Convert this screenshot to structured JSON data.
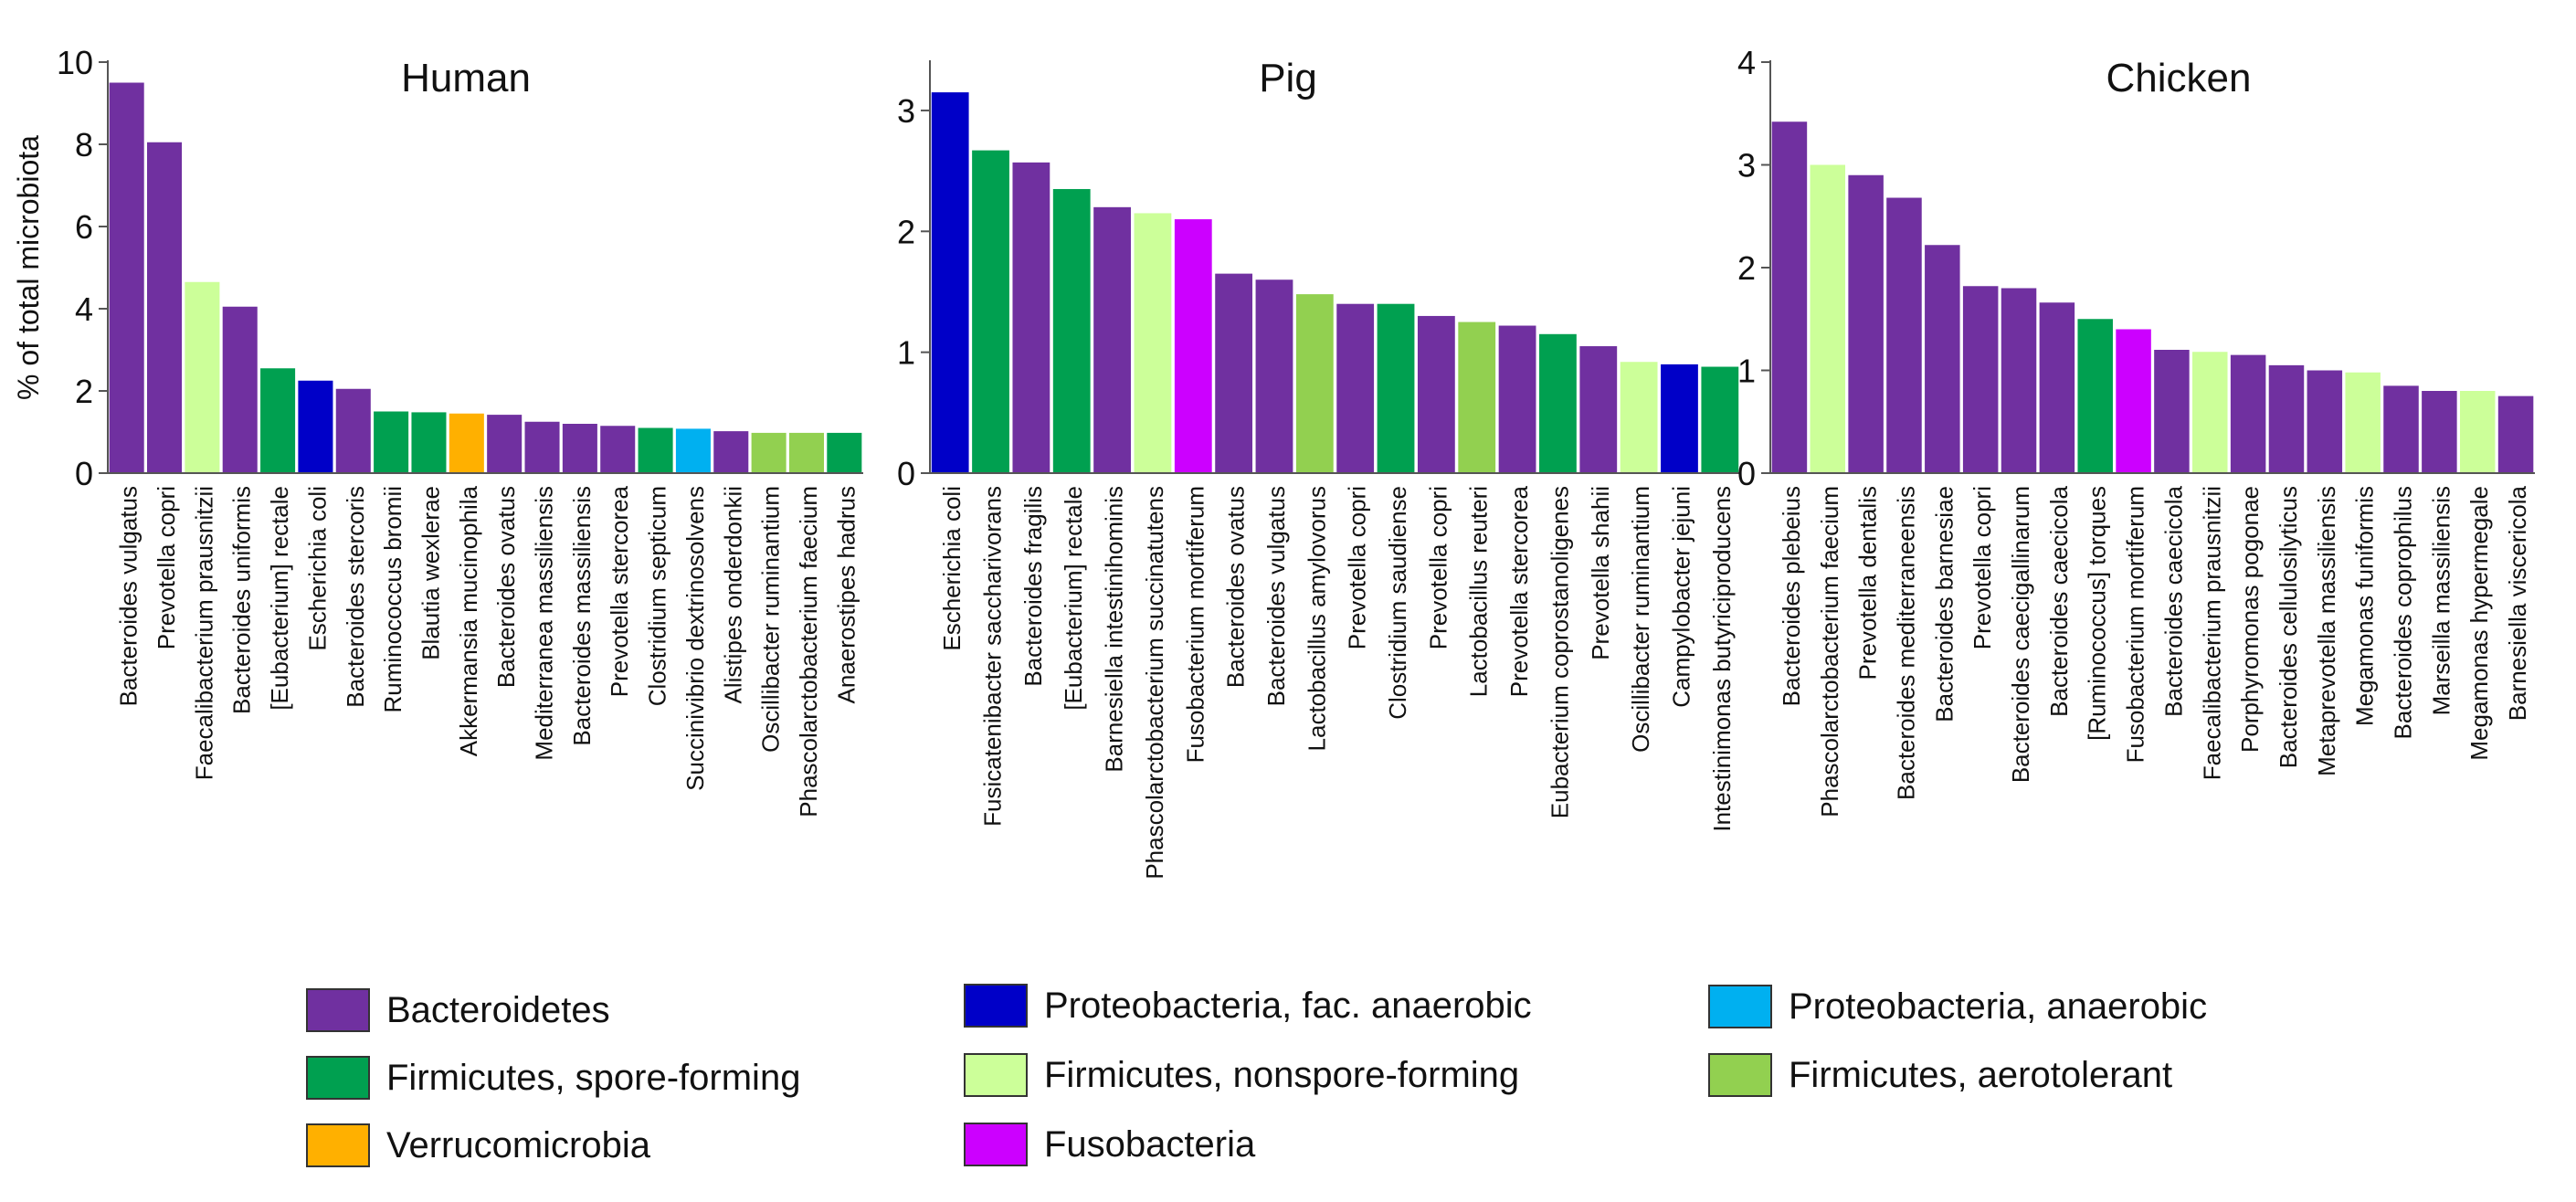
{
  "colors": {
    "bacteroidetes": "#7030a0",
    "firmicutes_spore": "#00a050",
    "verrucomicrobia": "#ffb000",
    "proteobacteria_fac": "#0000c8",
    "firmicutes_nonspore": "#ccff99",
    "fusobacteria": "#cc00ff",
    "proteobacteria_anaerobic": "#00b0f0",
    "firmicutes_aerotolerant": "#92d050"
  },
  "chart_data": [
    {
      "type": "bar",
      "title": "Human",
      "ylabel": "% of total microbiota",
      "xlabel": "",
      "ylim": [
        0,
        10
      ],
      "yticks": [
        "0",
        "2",
        "4",
        "6",
        "8",
        "10"
      ],
      "yticks_values": [
        0,
        2,
        4,
        6,
        8,
        10
      ],
      "categories": [
        "Bacteroides vulgatus",
        "Prevotella copri",
        "Faecalibacterium prausnitzii",
        "Bacteroides uniformis",
        "[Eubacterium] rectale",
        "Escherichia coli",
        "Bacteroides stercoris",
        "Ruminococcus bromii",
        "Blautia wexlerae",
        "Akkermansia mucinophila",
        "Bacteroides ovatus",
        "Mediterranea massiliensis",
        "Bacteroides massiliensis",
        "Prevotella stercorea",
        "Clostridium septicum",
        "Succinivibrio dextrinosolvens",
        "Alistipes onderdonkii",
        "Oscillibacter ruminantium",
        "Phascolarctobacterium faecium",
        "Anaerostipes hadrus"
      ],
      "values": [
        9.5,
        8.05,
        4.65,
        4.05,
        2.55,
        2.25,
        2.05,
        1.5,
        1.48,
        1.45,
        1.42,
        1.25,
        1.2,
        1.15,
        1.1,
        1.08,
        1.02,
        0.98,
        0.98,
        0.98
      ],
      "groups": [
        "bacteroidetes",
        "bacteroidetes",
        "firmicutes_nonspore",
        "bacteroidetes",
        "firmicutes_spore",
        "proteobacteria_fac",
        "bacteroidetes",
        "firmicutes_spore",
        "firmicutes_spore",
        "verrucomicrobia",
        "bacteroidetes",
        "bacteroidetes",
        "bacteroidetes",
        "bacteroidetes",
        "firmicutes_spore",
        "proteobacteria_anaerobic",
        "bacteroidetes",
        "firmicutes_aerotolerant",
        "firmicutes_aerotolerant",
        "firmicutes_spore"
      ]
    },
    {
      "type": "bar",
      "title": "Pig",
      "ylabel": "",
      "xlabel": "",
      "ylim": [
        0,
        3.4
      ],
      "yticks": [
        "0",
        "1",
        "2",
        "3"
      ],
      "yticks_values": [
        0,
        1,
        2,
        3
      ],
      "categories": [
        "Escherichia coli",
        "Fusicatenibacter saccharivorans",
        "Bacteroides fragilis",
        "[Eubacterium] rectale",
        "Barnesiella intestinihominis",
        "Phascolarctobacterium succinatutens",
        "Fusobacterium mortiferum",
        "Bacteroides ovatus",
        "Bacteroides vulgatus",
        "Lactobacillus amylovorus",
        "Prevotella copri",
        "Clostridium saudiense",
        "Prevotella copri",
        "Lactobacillus reuteri",
        "Prevotella stercorea",
        "Eubacterium coprostanoligenes",
        "Prevotella shahii",
        "Oscillibacter ruminantium",
        "Campylobacter jejuni",
        "Intestinimonas butyriciproducens"
      ],
      "values": [
        3.15,
        2.67,
        2.57,
        2.35,
        2.2,
        2.15,
        2.1,
        1.65,
        1.6,
        1.48,
        1.4,
        1.4,
        1.3,
        1.25,
        1.22,
        1.15,
        1.05,
        0.92,
        0.9,
        0.88
      ],
      "groups": [
        "proteobacteria_fac",
        "firmicutes_spore",
        "bacteroidetes",
        "firmicutes_spore",
        "bacteroidetes",
        "firmicutes_nonspore",
        "fusobacteria",
        "bacteroidetes",
        "bacteroidetes",
        "firmicutes_aerotolerant",
        "bacteroidetes",
        "firmicutes_spore",
        "bacteroidetes",
        "firmicutes_aerotolerant",
        "bacteroidetes",
        "firmicutes_spore",
        "bacteroidetes",
        "firmicutes_nonspore",
        "proteobacteria_fac",
        "firmicutes_spore"
      ]
    },
    {
      "type": "bar",
      "title": "Chicken",
      "ylabel": "",
      "xlabel": "",
      "ylim": [
        0,
        4
      ],
      "yticks": [
        "0",
        "1",
        "2",
        "3",
        "4"
      ],
      "yticks_values": [
        0,
        1,
        2,
        3,
        4
      ],
      "categories": [
        "Bacteroides plebeius",
        "Phascolarctobacterium faecium",
        "Prevotella dentalis",
        "Bacteroides mediterraneensis",
        "Bacteroides barnesiae",
        "Prevotella copri",
        "Bacteroides caecigallinarum",
        "Bacteroides caecicola",
        "[Ruminococcus] torques",
        "Fusobacterium mortiferum",
        "Bacteroides caecicola",
        "Faecalibacterium prausnitzii",
        "Porphyromonas pogonae",
        "Bacteroides cellulosilyticus",
        "Metaprevotella massiliensis",
        "Megamonas funiformis",
        "Bacteroides coprophilus",
        "Marseilla massiliensis",
        "Megamonas hypermegale",
        "Barnesiella viscericola"
      ],
      "values": [
        3.42,
        3.0,
        2.9,
        2.68,
        2.22,
        1.82,
        1.8,
        1.66,
        1.5,
        1.4,
        1.2,
        1.18,
        1.15,
        1.05,
        1.0,
        0.98,
        0.85,
        0.8,
        0.8,
        0.75
      ],
      "groups": [
        "bacteroidetes",
        "firmicutes_nonspore",
        "bacteroidetes",
        "bacteroidetes",
        "bacteroidetes",
        "bacteroidetes",
        "bacteroidetes",
        "bacteroidetes",
        "firmicutes_spore",
        "fusobacteria",
        "bacteroidetes",
        "firmicutes_nonspore",
        "bacteroidetes",
        "bacteroidetes",
        "bacteroidetes",
        "firmicutes_nonspore",
        "bacteroidetes",
        "bacteroidetes",
        "firmicutes_nonspore",
        "bacteroidetes"
      ]
    }
  ],
  "legend": [
    {
      "key": "bacteroidetes",
      "label": "Bacteroidetes"
    },
    {
      "key": "firmicutes_spore",
      "label": "Firmicutes, spore-forming"
    },
    {
      "key": "verrucomicrobia",
      "label": "Verrucomicrobia"
    },
    {
      "key": "proteobacteria_fac",
      "label": "Proteobacteria, fac. anaerobic"
    },
    {
      "key": "firmicutes_nonspore",
      "label": "Firmicutes, nonspore-forming"
    },
    {
      "key": "fusobacteria",
      "label": "Fusobacteria"
    },
    {
      "key": "proteobacteria_anaerobic",
      "label": "Proteobacteria, anaerobic"
    },
    {
      "key": "firmicutes_aerotolerant",
      "label": "Firmicutes, aerotolerant"
    }
  ]
}
